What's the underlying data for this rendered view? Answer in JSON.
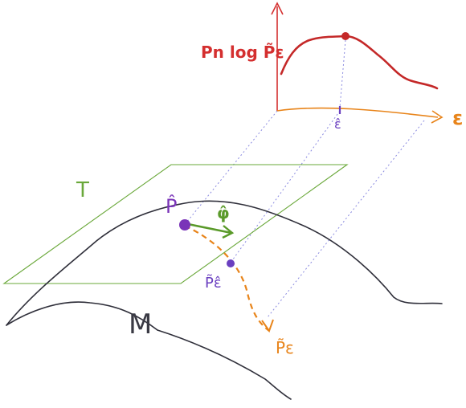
{
  "labels": {
    "curve": "Pn log P̃ε",
    "axis": "ε",
    "eps_hat": "ε̂",
    "tangent": "T",
    "manifold": "M",
    "p_hat": "P̂",
    "phi_hat": "φ̂",
    "p_tilde_eps_hat": "P̃ε̂",
    "p_tilde_eps": "P̃ε"
  },
  "colors": {
    "red": "#d42f2f",
    "orange": "#e8841a",
    "green": "#5a9a2a",
    "purple": "#7a34b8",
    "blue_dotted": "#8080e0",
    "manifold": "#2f2f3a"
  }
}
